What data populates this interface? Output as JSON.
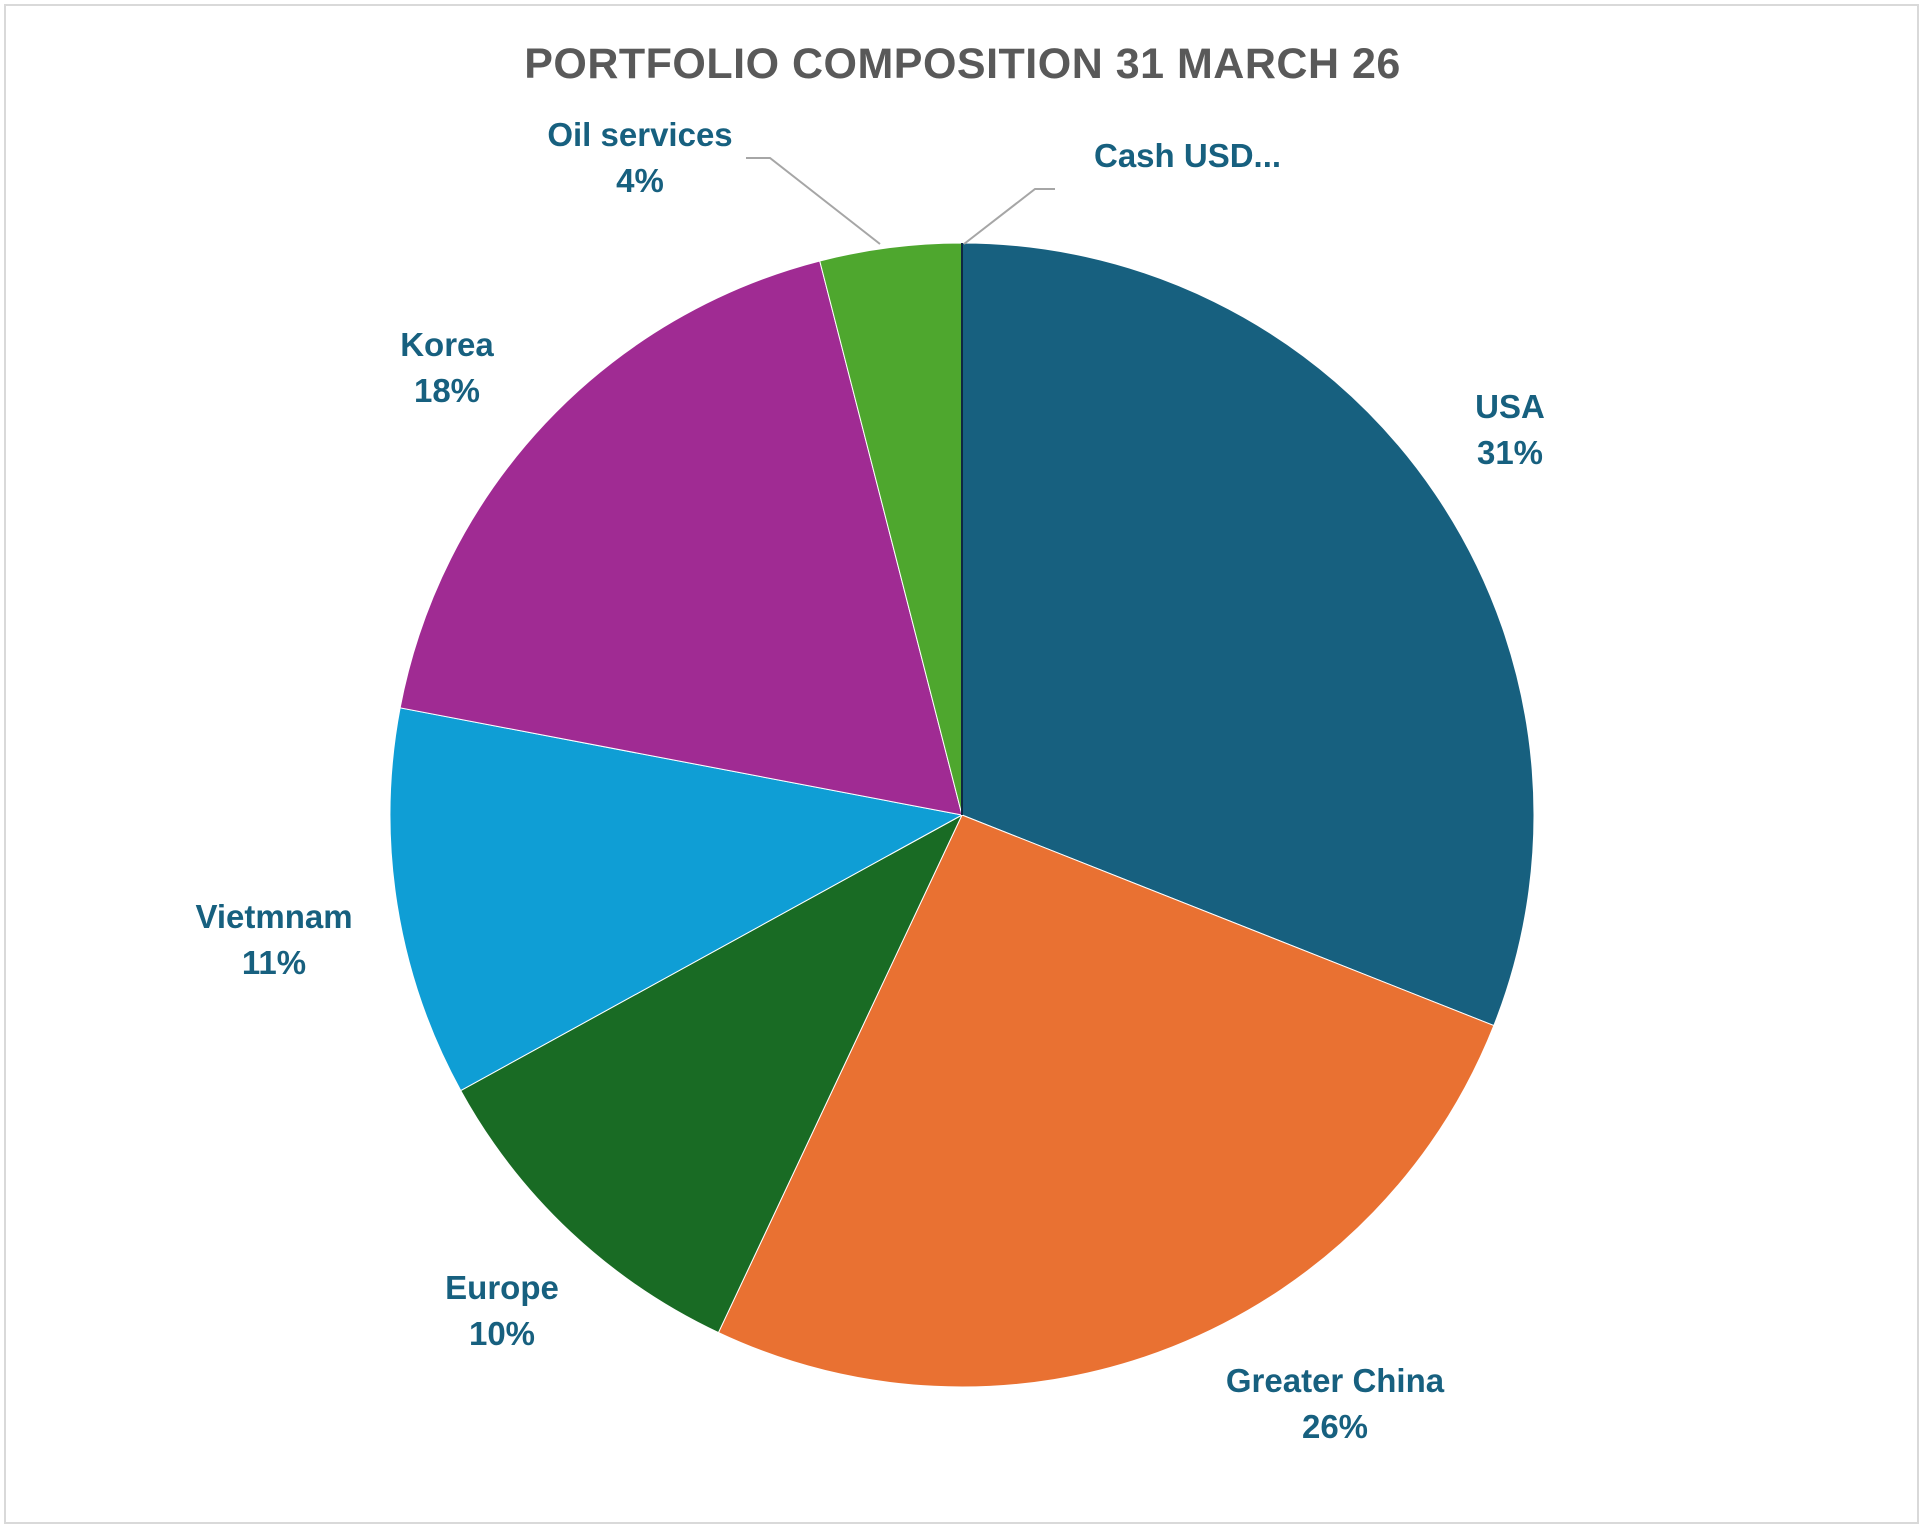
{
  "chart_data": {
    "type": "pie",
    "title": "PORTFOLIO COMPOSITION 31 MARCH 26",
    "slices": [
      {
        "name": "USA",
        "value": 31,
        "value_label": "31%",
        "color": "#17607f"
      },
      {
        "name": "Greater China",
        "value": 26,
        "value_label": "26%",
        "color": "#e97132"
      },
      {
        "name": "Europe",
        "value": 10,
        "value_label": "10%",
        "color": "#196b24"
      },
      {
        "name": "Vietmnam",
        "value": 11,
        "value_label": "11%",
        "color": "#0f9ed5"
      },
      {
        "name": "Korea",
        "value": 18,
        "value_label": "18%",
        "color": "#a02b93"
      },
      {
        "name": "Oil services",
        "value": 4,
        "value_label": "4%",
        "color": "#4ea72e"
      },
      {
        "name": "Cash USD...",
        "value": 0,
        "value_label": "",
        "color": "#0e2841"
      }
    ],
    "start_angle_deg": 0,
    "direction": "clockwise",
    "label_color": "#17607f",
    "leader_line_color": "#a6a6a6",
    "legend": "none"
  }
}
